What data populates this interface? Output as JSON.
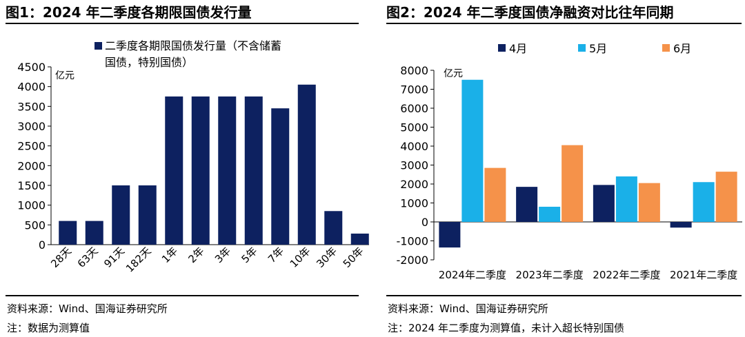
{
  "left": {
    "title": "图1：2024 年二季度各期限国债发行量",
    "source": "资料来源：Wind、国海证券研究所",
    "note": "注：数据为测算值"
  },
  "right": {
    "title": "图2：2024 年二季度国债净融资对比往年同期",
    "source": "资料来源：Wind、国海证券研究所",
    "note": "注：2024 年二季度为测算值，未计入超长特别国债"
  },
  "colors": {
    "navy": "#0d2160",
    "sky": "#1ab0e8",
    "orange": "#f5924a"
  },
  "chart_data": [
    {
      "type": "bar",
      "title": "",
      "unit": "亿元",
      "categories": [
        "28天",
        "63天",
        "91天",
        "182天",
        "1年",
        "2年",
        "3年",
        "5年",
        "7年",
        "10年",
        "30年",
        "50年"
      ],
      "series": [
        {
          "name": "二季度各期限国债发行量（不含储蓄国债，特别国债）",
          "values": [
            600,
            600,
            1500,
            1500,
            3750,
            3750,
            3750,
            3750,
            3450,
            4050,
            850,
            280
          ]
        }
      ],
      "yticks": [
        0,
        500,
        1000,
        1500,
        2000,
        2500,
        3000,
        3500,
        4000,
        4500
      ],
      "ylim": [
        0,
        4500
      ],
      "legend_position": "top",
      "grid": false
    },
    {
      "type": "bar",
      "title": "",
      "unit": "亿元",
      "categories": [
        "2024年二季度",
        "2023年二季度",
        "2022年二季度",
        "2021年二季度"
      ],
      "series": [
        {
          "name": "4月",
          "values": [
            -1350,
            1850,
            1950,
            -300
          ]
        },
        {
          "name": "5月",
          "values": [
            7500,
            800,
            2400,
            2100
          ]
        },
        {
          "name": "6月",
          "values": [
            2850,
            4050,
            2050,
            2650
          ]
        }
      ],
      "yticks": [
        -2000,
        -1000,
        0,
        1000,
        2000,
        3000,
        4000,
        5000,
        6000,
        7000,
        8000
      ],
      "ylim": [
        -2000,
        8000
      ],
      "legend_position": "top",
      "grid": false
    }
  ]
}
